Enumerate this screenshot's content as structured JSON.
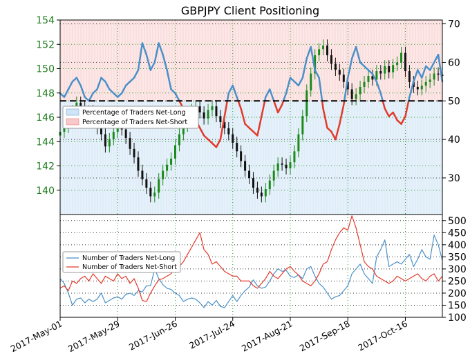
{
  "chart_data": [
    {
      "type": "candlestick+line",
      "title": "GBPJPY Client Positioning",
      "xlabel": "",
      "ylabel": "",
      "left_axis": {
        "ticks": [
          "140",
          "142",
          "144",
          "146",
          "148",
          "150",
          "152",
          "154"
        ],
        "ylim": [
          138,
          154
        ],
        "color": "#1a7a1a"
      },
      "right_axis": {
        "ticks": [
          "30",
          "40",
          "50",
          "60",
          "70"
        ],
        "ylim": [
          20.5,
          71
        ]
      },
      "x_ticks": [
        "2017-May-01",
        "2017-May-29",
        "2017-Jun-26",
        "2017-Jul-24",
        "2017-Aug-21",
        "2017-Sep-18",
        "2017-Oct-16"
      ],
      "x_tick_days": [
        0,
        28,
        56,
        84,
        112,
        140,
        168
      ],
      "x_range_days": [
        0,
        186
      ],
      "reference_line": 50,
      "grid": true,
      "legend": {
        "position": "left-middle",
        "entries": [
          "Percentage of Traders Net-Long",
          "Percentage of Traders Net-Short"
        ]
      },
      "series": [
        {
          "name": "Percentage of Traders Net-Long",
          "color": "#4a90c8",
          "x_days": [
            0,
            2,
            4,
            6,
            8,
            10,
            12,
            14,
            16,
            18,
            20,
            22,
            24,
            26,
            28,
            30,
            32,
            34,
            36,
            38,
            40,
            42,
            44,
            46,
            48,
            50,
            52,
            54,
            56,
            58,
            60,
            62,
            64,
            66,
            68,
            70,
            72,
            74,
            76,
            78,
            80,
            82,
            84,
            86,
            88,
            90,
            92,
            94,
            96,
            98,
            100,
            102,
            104,
            106,
            108,
            110,
            112,
            114,
            116,
            118,
            120,
            122,
            124,
            126,
            128,
            130,
            132,
            134,
            136,
            138,
            140,
            142,
            144,
            146,
            148,
            150,
            152,
            154,
            156,
            158,
            160,
            162,
            164,
            166,
            168,
            170,
            172,
            174,
            176,
            178,
            180,
            182,
            184,
            186
          ],
          "values": [
            52,
            51,
            53,
            55,
            56,
            54,
            51,
            50,
            52,
            53,
            56,
            55,
            53,
            52,
            51,
            52,
            54,
            55,
            56,
            58,
            65,
            62,
            58,
            60,
            65,
            62,
            58,
            53,
            52,
            50,
            48,
            46,
            47,
            45,
            43,
            41,
            40,
            39,
            38,
            40,
            46,
            52,
            54,
            51,
            48,
            44,
            43,
            42,
            41,
            46,
            51,
            53,
            50,
            47,
            49,
            52,
            56,
            55,
            54,
            56,
            61,
            64,
            58,
            56,
            48,
            43,
            42,
            40,
            44,
            49,
            56,
            61,
            64,
            60,
            59,
            58,
            57,
            55,
            52,
            48,
            46,
            47,
            45,
            44,
            46,
            51,
            55,
            58,
            56,
            59,
            58,
            60,
            62,
            55
          ]
        }
      ],
      "price": {
        "color_up": "#1a8a1a",
        "color_down": "#111111",
        "x_days": [
          0,
          2,
          4,
          6,
          8,
          10,
          12,
          14,
          16,
          18,
          20,
          22,
          24,
          26,
          28,
          30,
          32,
          34,
          36,
          38,
          40,
          42,
          44,
          46,
          48,
          50,
          52,
          54,
          56,
          58,
          60,
          62,
          64,
          66,
          68,
          70,
          72,
          74,
          76,
          78,
          80,
          82,
          84,
          86,
          88,
          90,
          92,
          94,
          96,
          98,
          100,
          102,
          104,
          106,
          108,
          110,
          112,
          114,
          116,
          118,
          120,
          122,
          124,
          126,
          128,
          130,
          132,
          134,
          136,
          138,
          140,
          142,
          144,
          146,
          148,
          150,
          152,
          154,
          156,
          158,
          160,
          162,
          164,
          166,
          168,
          170,
          172,
          174,
          176,
          178,
          180,
          182,
          184,
          186
        ],
        "close": [
          144.8,
          145.2,
          146.1,
          146.5,
          147.2,
          146.8,
          146.2,
          146.5,
          145.6,
          145.1,
          144.6,
          143.6,
          144.2,
          144.8,
          145.3,
          145.0,
          144.3,
          143.4,
          142.7,
          141.6,
          140.9,
          140.2,
          139.5,
          139.8,
          140.9,
          141.6,
          142.1,
          142.6,
          143.7,
          144.6,
          145.3,
          145.9,
          146.6,
          146.9,
          146.4,
          145.9,
          146.6,
          146.9,
          146.1,
          145.6,
          145.1,
          144.6,
          143.9,
          143.2,
          142.4,
          141.6,
          141.0,
          140.2,
          139.8,
          139.5,
          140.1,
          140.8,
          141.6,
          142.2,
          142.1,
          141.8,
          142.3,
          143.2,
          144.6,
          146.1,
          148.2,
          149.6,
          151.1,
          151.6,
          151.9,
          151.1,
          150.4,
          149.9,
          149.5,
          148.9,
          148.3,
          147.5,
          147.9,
          148.5,
          148.9,
          149.4,
          149.1,
          149.8,
          149.6,
          150.2,
          149.7,
          150.3,
          150.5,
          151.3,
          149.8,
          148.9,
          148.5,
          148.3,
          148.6,
          148.9,
          149.1,
          149.6,
          149.5,
          149.4
        ]
      }
    },
    {
      "type": "line",
      "title": "",
      "xlabel": "",
      "ylabel": "",
      "right_axis": {
        "ticks": [
          "100",
          "150",
          "200",
          "250",
          "300",
          "350",
          "400",
          "450",
          "500"
        ],
        "ylim": [
          100,
          525
        ]
      },
      "grid": true,
      "legend": {
        "position": "left-middle",
        "entries": [
          "Number of Traders Net-Long",
          "Number of Traders Net-Short"
        ]
      },
      "series": [
        {
          "name": "Number of Traders Net-Long",
          "color": "#4a90c8",
          "x_days": [
            0,
            2,
            4,
            6,
            8,
            10,
            12,
            14,
            16,
            18,
            20,
            22,
            24,
            26,
            28,
            30,
            32,
            34,
            36,
            38,
            40,
            42,
            44,
            46,
            48,
            50,
            52,
            54,
            56,
            58,
            60,
            62,
            64,
            66,
            68,
            70,
            72,
            74,
            76,
            78,
            80,
            82,
            84,
            86,
            88,
            90,
            92,
            94,
            96,
            98,
            100,
            102,
            104,
            106,
            108,
            110,
            112,
            114,
            116,
            118,
            120,
            122,
            124,
            126,
            128,
            130,
            132,
            134,
            136,
            138,
            140,
            142,
            144,
            146,
            148,
            150,
            152,
            154,
            156,
            158,
            160,
            162,
            164,
            166,
            168,
            170,
            172,
            174,
            176,
            178,
            180,
            182,
            184,
            186
          ],
          "values": [
            260,
            240,
            200,
            150,
            175,
            180,
            160,
            175,
            165,
            175,
            200,
            160,
            170,
            180,
            185,
            175,
            195,
            200,
            190,
            210,
            205,
            230,
            230,
            300,
            260,
            235,
            220,
            215,
            200,
            190,
            165,
            175,
            180,
            175,
            160,
            140,
            165,
            150,
            170,
            145,
            140,
            165,
            190,
            165,
            190,
            210,
            225,
            255,
            230,
            220,
            225,
            250,
            280,
            300,
            290,
            295,
            270,
            265,
            275,
            260,
            300,
            310,
            270,
            240,
            225,
            200,
            175,
            185,
            190,
            210,
            230,
            280,
            300,
            320,
            280,
            260,
            240,
            350,
            380,
            420,
            310,
            320,
            330,
            320,
            340,
            360,
            310,
            340,
            380,
            350,
            340,
            440,
            400,
            335
          ]
        },
        {
          "name": "Number of Traders Net-Short",
          "color": "#e23a2a",
          "x_days": [
            0,
            2,
            4,
            6,
            8,
            10,
            12,
            14,
            16,
            18,
            20,
            22,
            24,
            26,
            28,
            30,
            32,
            34,
            36,
            38,
            40,
            42,
            44,
            46,
            48,
            50,
            52,
            54,
            56,
            58,
            60,
            62,
            64,
            66,
            68,
            70,
            72,
            74,
            76,
            78,
            80,
            82,
            84,
            86,
            88,
            90,
            92,
            94,
            96,
            98,
            100,
            102,
            104,
            106,
            108,
            110,
            112,
            114,
            116,
            118,
            120,
            122,
            124,
            126,
            128,
            130,
            132,
            134,
            136,
            138,
            140,
            142,
            144,
            146,
            148,
            150,
            152,
            154,
            156,
            158,
            160,
            162,
            164,
            166,
            168,
            170,
            172,
            174,
            176,
            178,
            180,
            182,
            184,
            186
          ],
          "values": [
            220,
            230,
            210,
            250,
            240,
            260,
            270,
            250,
            280,
            260,
            240,
            270,
            260,
            250,
            280,
            260,
            270,
            240,
            260,
            220,
            170,
            165,
            200,
            230,
            255,
            260,
            270,
            280,
            300,
            310,
            330,
            360,
            390,
            420,
            450,
            380,
            360,
            320,
            330,
            310,
            290,
            280,
            270,
            270,
            250,
            250,
            250,
            230,
            220,
            240,
            260,
            290,
            270,
            260,
            280,
            300,
            310,
            290,
            275,
            250,
            240,
            230,
            250,
            280,
            320,
            330,
            380,
            420,
            450,
            470,
            460,
            520,
            470,
            400,
            330,
            310,
            300,
            270,
            260,
            250,
            240,
            250,
            270,
            260,
            250,
            260,
            270,
            280,
            260,
            250,
            270,
            280,
            250,
            270
          ]
        }
      ]
    }
  ]
}
